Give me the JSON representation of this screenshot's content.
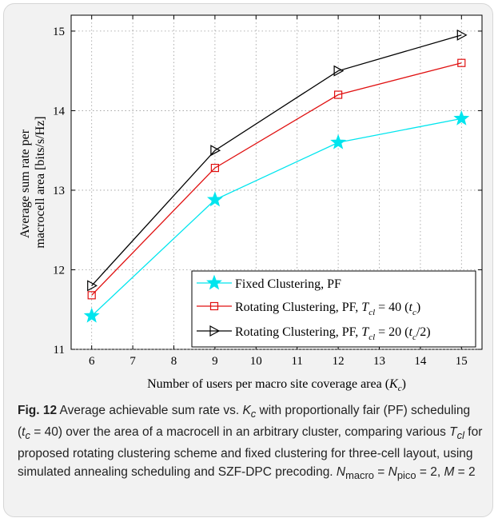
{
  "chart_data": {
    "type": "line",
    "xlabel": "Number of users per macro site coverage area (K_c)",
    "ylabel_line1": "Average sum rate per",
    "ylabel_line2": "macrocell area [bits/s/Hz]",
    "xlim": [
      5.5,
      15.5
    ],
    "ylim": [
      11,
      15.2
    ],
    "xticks": [
      6,
      7,
      8,
      9,
      10,
      11,
      12,
      13,
      14,
      15
    ],
    "yticks": [
      11,
      12,
      13,
      14,
      15
    ],
    "grid": true,
    "legend_position": "bottom-right",
    "x": [
      6,
      9,
      12,
      15
    ],
    "series": [
      {
        "name": "Fixed Clustering, PF",
        "values": [
          11.42,
          12.88,
          13.6,
          13.9
        ],
        "color": "#00e5ee",
        "marker": "star"
      },
      {
        "name": "Rotating Clustering, PF,  T_cl = 40 (t_c)",
        "values": [
          11.68,
          13.28,
          14.2,
          14.6
        ],
        "color": "#e01010",
        "marker": "square"
      },
      {
        "name": "Rotating Clustering, PF,  T_cl = 20 (t_c/2)",
        "values": [
          11.8,
          13.5,
          14.5,
          14.95
        ],
        "color": "#000000",
        "marker": "triangle-right"
      }
    ]
  },
  "legend": {
    "entries": [
      {
        "main": "Fixed Clustering, PF",
        "suffix": ""
      },
      {
        "main": "Rotating Clustering, PF,  ",
        "suffix": "= 40 ("
      },
      {
        "main": "Rotating Clustering, PF,  ",
        "suffix": "= 20 ("
      }
    ]
  },
  "caption": {
    "fig_label": "Fig. 12",
    "text": " Average achievable sum rate vs. K_c with proportionally fair (PF) scheduling (t_c = 40) over the area of a macrocell in an arbitrary cluster, comparing various T_cl for proposed rotating clustering scheme and fixed clustering for three-cell layout, using simulated annealing scheduling and SZF-DPC precoding. N_macro = N_pico = 2, M = 2"
  }
}
